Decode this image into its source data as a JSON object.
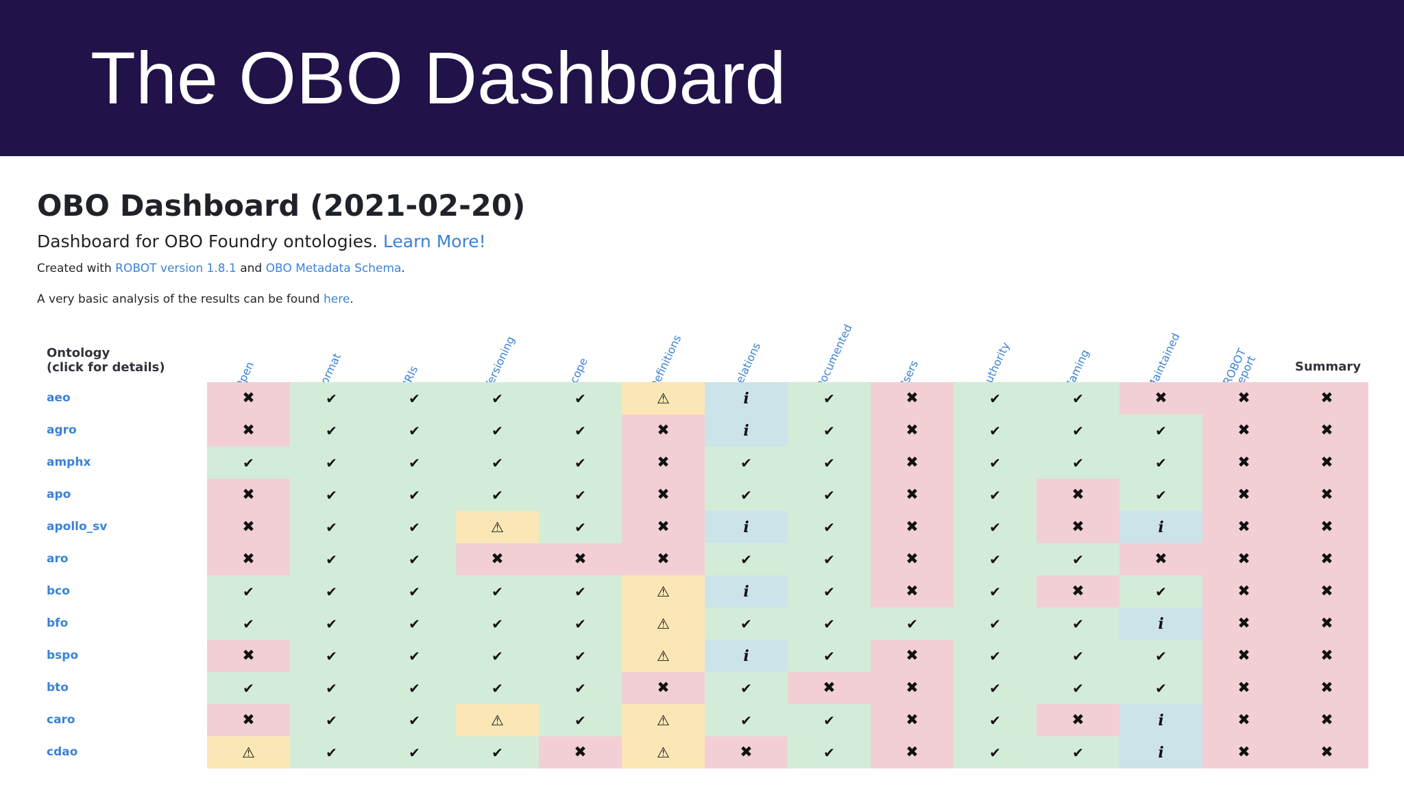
{
  "slide": {
    "title": "The OBO Dashboard"
  },
  "page": {
    "heading": "OBO Dashboard (2021-02-20)",
    "lead_text": "Dashboard for OBO Foundry ontologies.",
    "lead_link": "Learn More!",
    "created_prefix": "Created with",
    "created_link1": "ROBOT version 1.8.1",
    "created_mid": "and",
    "created_link2": "OBO Metadata Schema",
    "created_suffix": ".",
    "analysis_prefix": "A very basic analysis of the results can be found",
    "analysis_link": "here",
    "analysis_suffix": "."
  },
  "table": {
    "ontology_header_line1": "Ontology",
    "ontology_header_line2": "(click for details)",
    "summary_header": "Summary",
    "columns": [
      "Open",
      "Format",
      "URIs",
      "Versioning",
      "Scope",
      "Definitions",
      "Relations",
      "Documented",
      "Users",
      "Authority",
      "Naming",
      "Maintained",
      "ROBOT Report"
    ],
    "robot_report_line1": "ROBOT",
    "robot_report_line2": "Report",
    "marks": {
      "pass": "✔",
      "fail": "✖",
      "warn": "⚠",
      "info": "i"
    },
    "status_colors": {
      "pass": "#d3ecd8",
      "fail": "#f2cfd5",
      "warn": "#fbe7b5",
      "info": "#cde3ea"
    },
    "rows": [
      {
        "name": "aeo",
        "cells": [
          "fail",
          "pass",
          "pass",
          "pass",
          "pass",
          "warn",
          "info",
          "pass",
          "fail",
          "pass",
          "pass",
          "fail",
          "fail",
          "fail"
        ]
      },
      {
        "name": "agro",
        "cells": [
          "fail",
          "pass",
          "pass",
          "pass",
          "pass",
          "fail",
          "info",
          "pass",
          "fail",
          "pass",
          "pass",
          "pass",
          "fail",
          "fail"
        ]
      },
      {
        "name": "amphx",
        "cells": [
          "pass",
          "pass",
          "pass",
          "pass",
          "pass",
          "fail",
          "pass",
          "pass",
          "fail",
          "pass",
          "pass",
          "pass",
          "fail",
          "fail"
        ]
      },
      {
        "name": "apo",
        "cells": [
          "fail",
          "pass",
          "pass",
          "pass",
          "pass",
          "fail",
          "pass",
          "pass",
          "fail",
          "pass",
          "fail",
          "pass",
          "fail",
          "fail"
        ]
      },
      {
        "name": "apollo_sv",
        "cells": [
          "fail",
          "pass",
          "pass",
          "warn",
          "pass",
          "fail",
          "info",
          "pass",
          "fail",
          "pass",
          "fail",
          "info",
          "fail",
          "fail"
        ]
      },
      {
        "name": "aro",
        "cells": [
          "fail",
          "pass",
          "pass",
          "fail",
          "fail",
          "fail",
          "pass",
          "pass",
          "fail",
          "pass",
          "pass",
          "fail",
          "fail",
          "fail"
        ]
      },
      {
        "name": "bco",
        "cells": [
          "pass",
          "pass",
          "pass",
          "pass",
          "pass",
          "warn",
          "info",
          "pass",
          "fail",
          "pass",
          "fail",
          "pass",
          "fail",
          "fail"
        ]
      },
      {
        "name": "bfo",
        "cells": [
          "pass",
          "pass",
          "pass",
          "pass",
          "pass",
          "warn",
          "pass",
          "pass",
          "pass",
          "pass",
          "pass",
          "info",
          "fail",
          "fail"
        ]
      },
      {
        "name": "bspo",
        "cells": [
          "fail",
          "pass",
          "pass",
          "pass",
          "pass",
          "warn",
          "info",
          "pass",
          "fail",
          "pass",
          "pass",
          "pass",
          "fail",
          "fail"
        ]
      },
      {
        "name": "bto",
        "cells": [
          "pass",
          "pass",
          "pass",
          "pass",
          "pass",
          "fail",
          "pass",
          "fail",
          "fail",
          "pass",
          "pass",
          "pass",
          "fail",
          "fail"
        ]
      },
      {
        "name": "caro",
        "cells": [
          "fail",
          "pass",
          "pass",
          "warn",
          "pass",
          "warn",
          "pass",
          "pass",
          "fail",
          "pass",
          "fail",
          "info",
          "fail",
          "fail"
        ]
      },
      {
        "name": "cdao",
        "cells": [
          "warn",
          "pass",
          "pass",
          "pass",
          "fail",
          "warn",
          "fail",
          "pass",
          "fail",
          "pass",
          "pass",
          "info",
          "fail",
          "fail"
        ]
      }
    ]
  }
}
